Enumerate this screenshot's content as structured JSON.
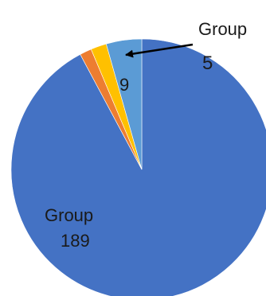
{
  "chart_data": {
    "type": "pie",
    "slices": [
      {
        "label": "Group 189",
        "value": 189,
        "color": "#4472C4"
      },
      {
        "label": "",
        "value": 3,
        "color": "#ED7D31"
      },
      {
        "label": "",
        "value": 4,
        "color": "#FFC000"
      },
      {
        "label": "Group 9",
        "value": 9,
        "color": "#5B9BD5"
      }
    ],
    "data_labels": {
      "large": {
        "line1": "Group",
        "line2": "189"
      },
      "small": {
        "line1": "Group",
        "line2": "5"
      },
      "inner": "9"
    },
    "legend": "none",
    "start_angle": "12 o'clock, clockwise"
  }
}
